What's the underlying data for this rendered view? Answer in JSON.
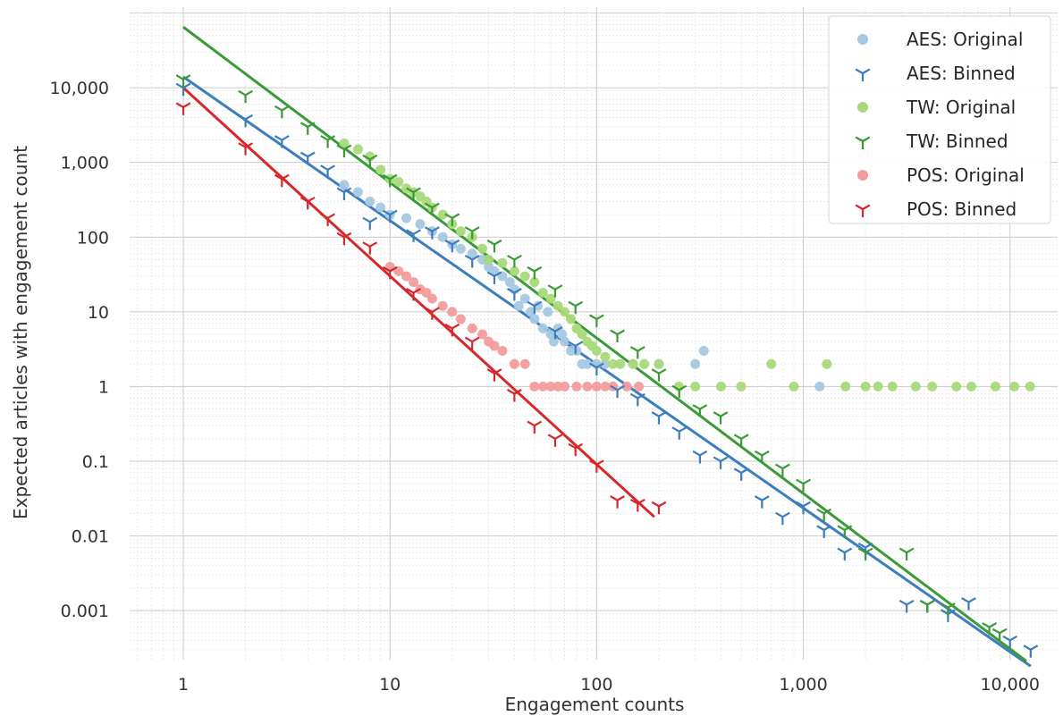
{
  "chart_data": {
    "type": "scatter",
    "xscale": "log",
    "yscale": "log",
    "xlabel": "Engagement counts",
    "ylabel": "Expected articles with engagement count",
    "xlim": [
      0.55,
      17000
    ],
    "ylim": [
      0.00022,
      120000
    ],
    "xticks": [
      {
        "value": 1,
        "label": "1"
      },
      {
        "value": 10,
        "label": "10"
      },
      {
        "value": 100,
        "label": "100"
      },
      {
        "value": 1000,
        "label": "1,000"
      },
      {
        "value": 10000,
        "label": "10,000"
      }
    ],
    "yticks": [
      {
        "value": 10000,
        "label": "10,000"
      },
      {
        "value": 1000,
        "label": "1,000"
      },
      {
        "value": 100,
        "label": "100"
      },
      {
        "value": 10,
        "label": "10"
      },
      {
        "value": 1,
        "label": "1"
      },
      {
        "value": 0.1,
        "label": "0.1"
      },
      {
        "value": 0.01,
        "label": "0.01"
      },
      {
        "value": 0.001,
        "label": "0.001"
      }
    ],
    "grid": true,
    "legend_position": "top-right",
    "colors": {
      "aes_original": "#a6c8e2",
      "aes_binned": "#3b7dbd",
      "tw_original": "#a8d97a",
      "tw_binned": "#3a9a35",
      "pos_original": "#f29c9c",
      "pos_binned": "#d6282c"
    },
    "series": [
      {
        "name": "AES: Original",
        "marker": "dot",
        "color": "#a6c8e2",
        "x": [
          6,
          7,
          8,
          9,
          10,
          12,
          14,
          16,
          18,
          20,
          22,
          25,
          28,
          30,
          32,
          35,
          38,
          40,
          42,
          45,
          48,
          50,
          52,
          55,
          58,
          60,
          62,
          65,
          68,
          70,
          75,
          80,
          85,
          90,
          100,
          110,
          150,
          200,
          300,
          330,
          1200
        ],
        "y": [
          500,
          400,
          300,
          250,
          200,
          180,
          150,
          120,
          100,
          80,
          70,
          60,
          50,
          40,
          35,
          30,
          25,
          20,
          12,
          15,
          10,
          8,
          12,
          6,
          10,
          5,
          4,
          6,
          5,
          4,
          3,
          3,
          2,
          2,
          2,
          2,
          2,
          2,
          2,
          3,
          1
        ]
      },
      {
        "name": "AES: Binned",
        "marker": "tri",
        "color": "#3b7dbd",
        "x": [
          1,
          2,
          3,
          4,
          5,
          6,
          8,
          10,
          13,
          16,
          20,
          25,
          32,
          40,
          50,
          63,
          79,
          100,
          126,
          158,
          200,
          251,
          316,
          398,
          501,
          631,
          794,
          1000,
          1259,
          1585,
          2000,
          3162,
          3981,
          5012,
          6310,
          10000,
          12589
        ],
        "y": [
          10000,
          3800,
          2000,
          1200,
          800,
          400,
          160,
          200,
          110,
          120,
          80,
          50,
          30,
          18,
          12,
          5.5,
          3.5,
          1.8,
          0.9,
          0.7,
          0.4,
          0.25,
          0.12,
          0.1,
          0.07,
          0.03,
          0.018,
          0.025,
          0.012,
          0.006,
          0.007,
          0.0012,
          0.0012,
          0.0009,
          0.0013,
          0.0004,
          0.0003
        ]
      },
      {
        "name": "TW: Original",
        "marker": "dot",
        "color": "#a8d97a",
        "x": [
          6,
          7,
          8,
          9,
          10,
          11,
          12,
          13,
          14,
          15,
          16,
          18,
          20,
          22,
          25,
          28,
          30,
          35,
          40,
          45,
          50,
          55,
          60,
          65,
          70,
          75,
          80,
          85,
          90,
          95,
          100,
          110,
          120,
          130,
          150,
          170,
          200,
          250,
          300,
          400,
          500,
          700,
          900,
          1300,
          1600,
          2000,
          2300,
          2700,
          3500,
          4200,
          5500,
          6500,
          8500,
          10500,
          12500
        ],
        "y": [
          1800,
          1500,
          1200,
          800,
          600,
          550,
          450,
          400,
          350,
          300,
          250,
          200,
          150,
          120,
          100,
          70,
          50,
          45,
          35,
          30,
          25,
          18,
          15,
          12,
          10,
          8,
          6,
          5,
          4,
          3.5,
          3,
          2.5,
          2,
          2,
          2,
          2,
          2,
          1,
          1,
          1,
          1,
          2,
          1,
          2,
          1,
          1,
          1,
          1,
          1,
          1,
          1,
          1,
          1,
          1,
          1
        ]
      },
      {
        "name": "TW: Binned",
        "marker": "tri",
        "color": "#3a9a35",
        "x": [
          1,
          2,
          3,
          4,
          5,
          6,
          8,
          10,
          13,
          16,
          20,
          25,
          32,
          40,
          50,
          63,
          79,
          100,
          126,
          158,
          200,
          251,
          316,
          398,
          501,
          631,
          794,
          1000,
          1259,
          1585,
          2000,
          3162,
          3981,
          5012,
          7943,
          8913
        ],
        "y": [
          13000,
          8000,
          5000,
          3000,
          2000,
          1500,
          1100,
          600,
          400,
          250,
          180,
          120,
          80,
          50,
          35,
          20,
          12,
          8,
          5,
          3,
          1.5,
          0.9,
          0.5,
          0.4,
          0.2,
          0.12,
          0.08,
          0.05,
          0.02,
          0.012,
          0.006,
          0.006,
          0.0012,
          0.0011,
          0.0006,
          0.0005
        ]
      },
      {
        "name": "POS: Original",
        "marker": "dot",
        "color": "#f29c9c",
        "x": [
          10,
          11,
          12,
          13,
          14,
          15,
          16,
          18,
          20,
          22,
          25,
          28,
          30,
          32,
          35,
          40,
          45,
          50,
          55,
          60,
          65,
          70,
          80,
          90,
          100,
          110,
          120,
          140,
          160
        ],
        "y": [
          40,
          35,
          30,
          25,
          20,
          18,
          15,
          12,
          10,
          8,
          6,
          5,
          4,
          3.5,
          3,
          2,
          2,
          1,
          1,
          1,
          1,
          1,
          1,
          1,
          1,
          1,
          1,
          1,
          1
        ]
      },
      {
        "name": "POS: Binned",
        "marker": "tri",
        "color": "#d6282c",
        "x": [
          1,
          2,
          3,
          4,
          5,
          6,
          8,
          10,
          13,
          16,
          20,
          25,
          32,
          40,
          50,
          63,
          79,
          100,
          126,
          158,
          200
        ],
        "y": [
          5500,
          1600,
          600,
          300,
          180,
          100,
          75,
          35,
          18,
          10,
          6,
          4,
          1.5,
          0.8,
          0.3,
          0.2,
          0.15,
          0.09,
          0.03,
          0.027,
          0.025
        ]
      }
    ],
    "fit_lines": [
      {
        "color": "#3b7dbd",
        "x": [
          1,
          12589
        ],
        "y": [
          14000,
          0.00018
        ]
      },
      {
        "color": "#3a9a35",
        "x": [
          1,
          12000
        ],
        "y": [
          65000,
          0.00021
        ]
      },
      {
        "color": "#d6282c",
        "x": [
          1,
          190
        ],
        "y": [
          10000,
          0.018
        ]
      }
    ]
  }
}
